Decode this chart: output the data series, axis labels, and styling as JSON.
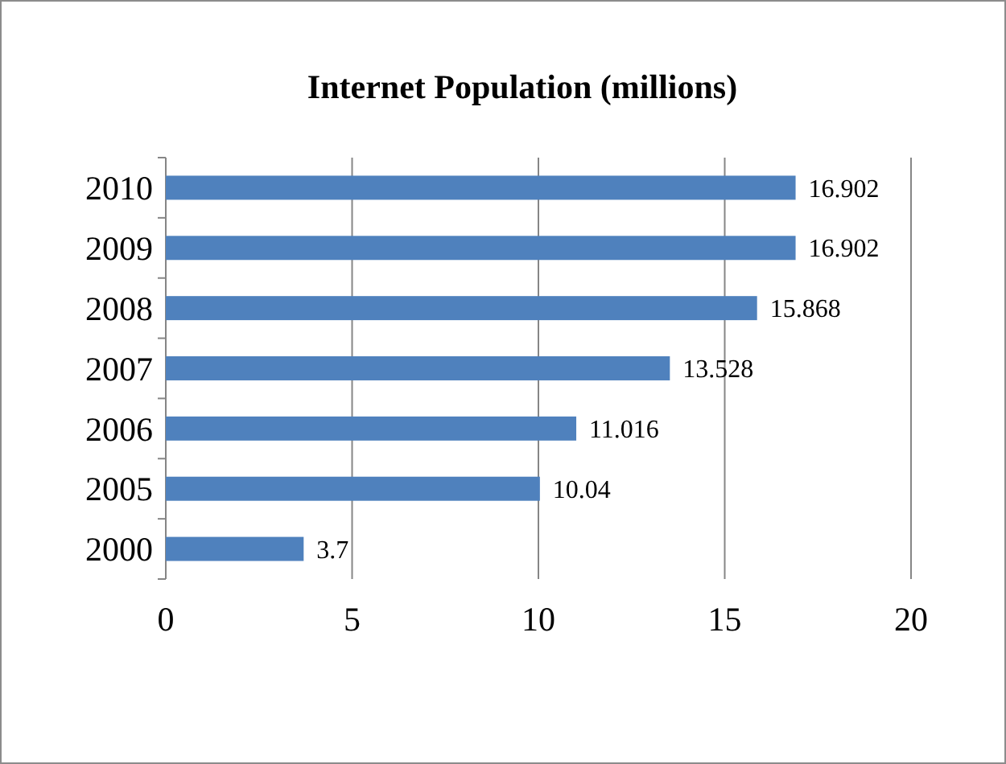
{
  "chart_data": {
    "type": "bar",
    "orientation": "horizontal",
    "title": "Internet Population (millions)",
    "categories": [
      "2010",
      "2009",
      "2008",
      "2007",
      "2006",
      "2005",
      "2000"
    ],
    "values": [
      16.902,
      16.902,
      15.868,
      13.528,
      11.016,
      10.04,
      3.7
    ],
    "color": "#4f81bd",
    "data_labels": true,
    "xlim": [
      0,
      20
    ],
    "xticks": [
      0,
      5,
      10,
      15,
      20
    ],
    "grid": "x"
  }
}
